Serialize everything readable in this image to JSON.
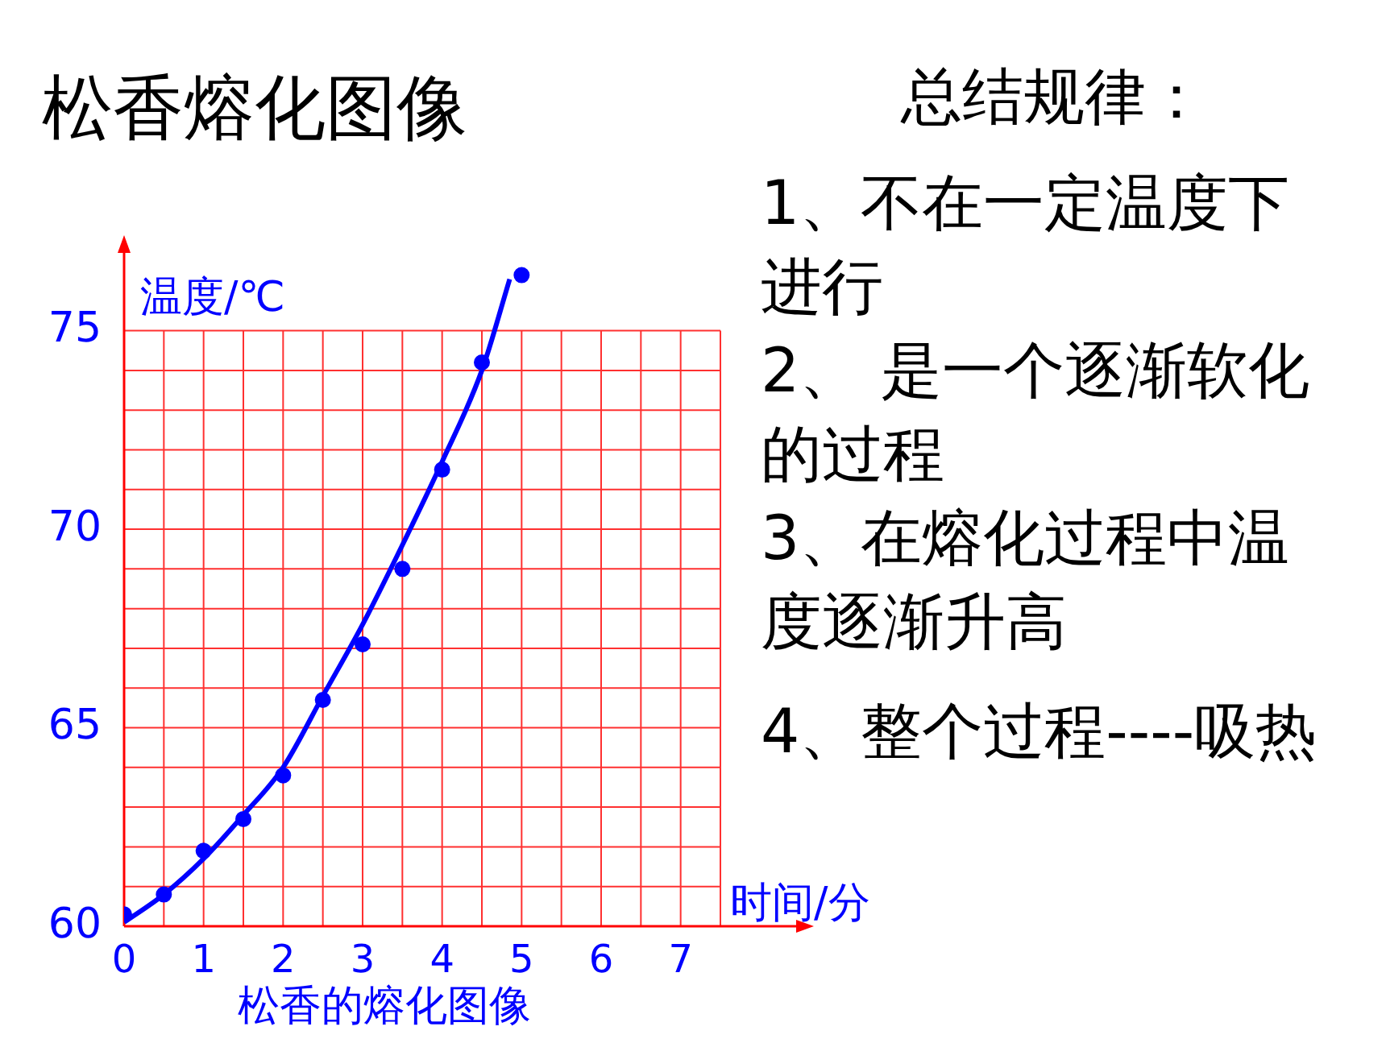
{
  "chart_data": {
    "type": "scatter",
    "title": "松香熔化图像",
    "subtitle": "松香的熔化图像",
    "xlabel": "时间/分",
    "ylabel": "温度/℃",
    "annotations": [
      "总结规律：",
      "1、不在一定温度下进行",
      "2、 是一个逐渐软化的过程",
      "3、在熔化过程中温度逐渐升高",
      "4、整个过程----吸热"
    ],
    "series": [
      {
        "color": "#0000ff",
        "marker": "circle",
        "x": [
          0,
          0.5,
          1,
          1.5,
          2,
          2.5,
          3,
          3.5,
          4,
          4.5,
          5
        ],
        "values": [
          60.3,
          60.8,
          61.9,
          62.7,
          63.8,
          65.7,
          67.1,
          69.0,
          71.5,
          74.2,
          76.4
        ]
      },
      {
        "type": "line",
        "color": "#0000ff",
        "x": [
          0,
          0.5,
          1,
          1.5,
          2,
          2.5,
          3,
          3.5,
          4,
          4.5,
          4.85
        ],
        "values": [
          60.1,
          60.8,
          61.7,
          62.8,
          64.0,
          65.8,
          67.6,
          69.6,
          71.7,
          74.0,
          76.3
        ]
      }
    ],
    "grid": true,
    "legend": false,
    "xlim": [
      0,
      7.5
    ],
    "ylim": [
      60,
      77
    ],
    "xticks": [
      0,
      {
        "value": 0.5,
        "label": null
      },
      1,
      {
        "value": 1.5,
        "label": null
      },
      2,
      {
        "value": 2.5,
        "label": null
      },
      3,
      {
        "value": 3.5,
        "label": null
      },
      4,
      {
        "value": 4.5,
        "label": null
      },
      5,
      {
        "value": 5.5,
        "label": null
      },
      6,
      {
        "value": 6.5,
        "label": null
      },
      7,
      {
        "value": 7.5,
        "label": null
      }
    ],
    "yticks": [
      60,
      {
        "value": 61,
        "label": null
      },
      {
        "value": 62,
        "label": null
      },
      {
        "value": 63,
        "label": null
      },
      {
        "value": 64,
        "label": null
      },
      65,
      {
        "value": 66,
        "label": null
      },
      {
        "value": 67,
        "label": null
      },
      {
        "value": 68,
        "label": null
      },
      {
        "value": 69,
        "label": null
      },
      70,
      {
        "value": 71,
        "label": null
      },
      {
        "value": 72,
        "label": null
      },
      {
        "value": 73,
        "label": null
      },
      {
        "value": 74,
        "label": null
      },
      75
    ]
  }
}
